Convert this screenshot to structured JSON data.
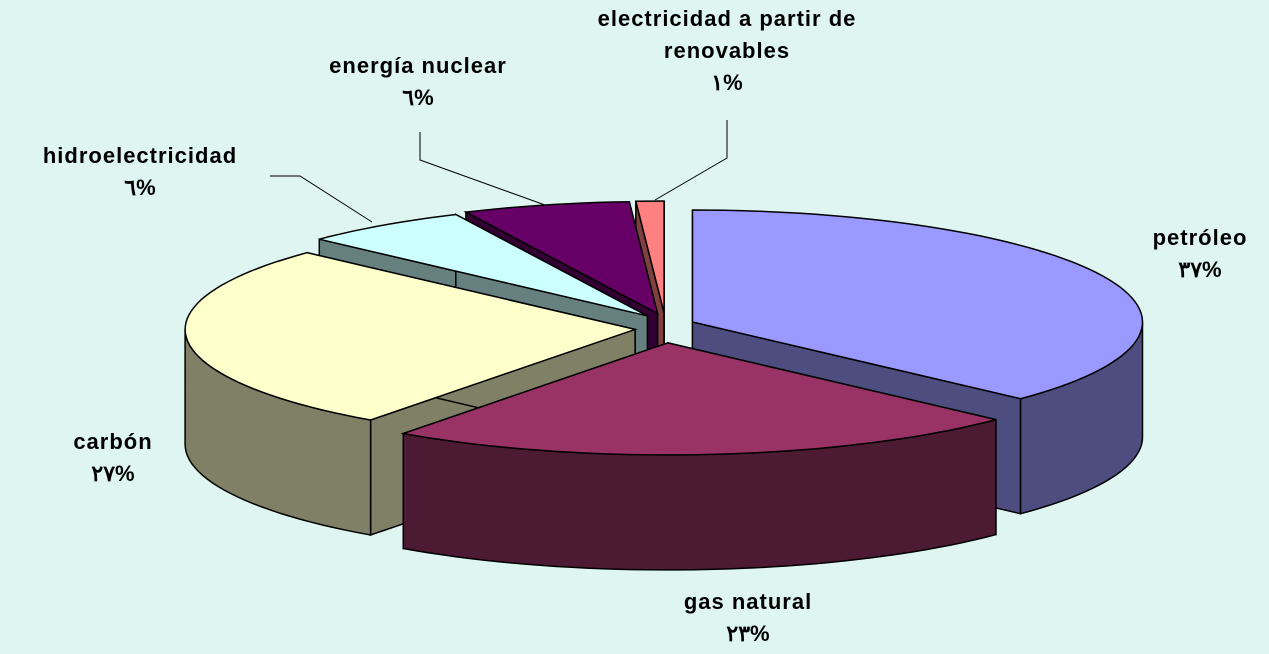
{
  "chart_data": {
    "type": "pie3d",
    "categories": [
      "petróleo",
      "gas natural",
      "carbón",
      "hidroelectricidad",
      "energía nuclear",
      "electricidad a partir de renovables"
    ],
    "values": [
      37,
      23,
      27,
      6,
      6,
      1
    ],
    "value_labels": [
      "٣٧%",
      "٢٣%",
      "٢٧%",
      "٦%",
      "٦%",
      "١%"
    ],
    "colors": [
      "#9999ff",
      "#993366",
      "#ffffcc",
      "#ccffff",
      "#660066",
      "#ff8080"
    ]
  }
}
